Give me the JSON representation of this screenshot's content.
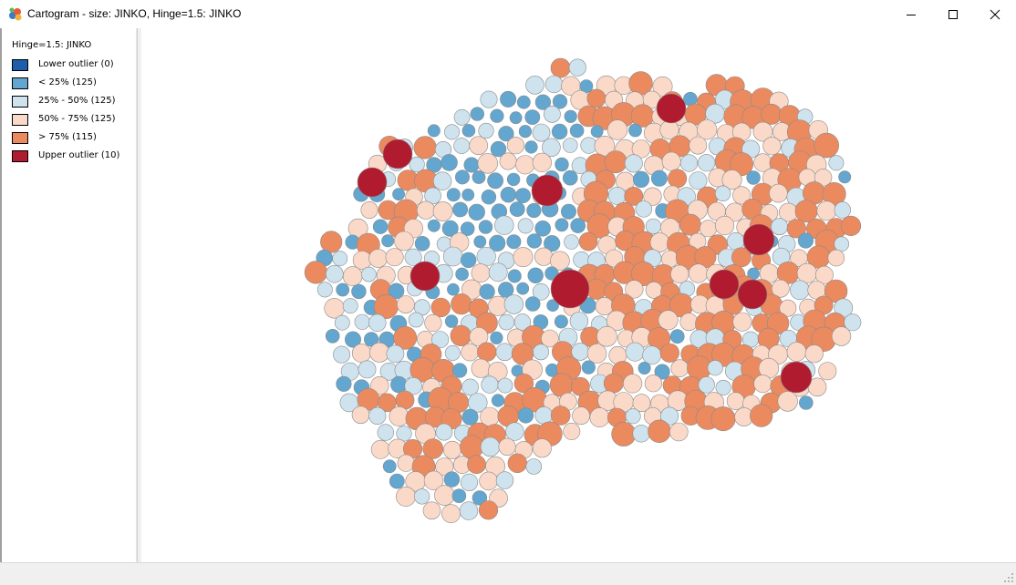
{
  "window": {
    "title": "Cartogram - size: JINKO, Hinge=1.5: JINKO",
    "app_icon": "cartogram-app-icon",
    "controls": [
      "minimize-icon",
      "maximize-icon",
      "close-icon"
    ]
  },
  "legend": {
    "title": "Hinge=1.5: JINKO",
    "items": [
      {
        "label": "Lower outlier (0)",
        "color": "#1f5fa9"
      },
      {
        "label": "< 25% (125)",
        "color": "#63a6cf"
      },
      {
        "label": "25% - 50% (125)",
        "color": "#cfe3ef"
      },
      {
        "label": "50% - 75% (125)",
        "color": "#fbd9c8"
      },
      {
        "label": "> 75% (115)",
        "color": "#ec8a5f"
      },
      {
        "label": "Upper outlier (10)",
        "color": "#b11b2f"
      }
    ]
  },
  "map": {
    "type": "cartogram",
    "size_variable": "JINKO",
    "color_variable": "JINKO",
    "hinge": 1.5,
    "category_counts": {
      "lower_outlier": 0,
      "q1": 125,
      "q2": 125,
      "q3": 125,
      "q4": 115,
      "upper_outlier": 10
    },
    "colors": [
      "#1f5fa9",
      "#63a6cf",
      "#cfe3ef",
      "#fbd9c8",
      "#ec8a5f",
      "#b11b2f"
    ],
    "stroke": "#8a8a8a"
  }
}
